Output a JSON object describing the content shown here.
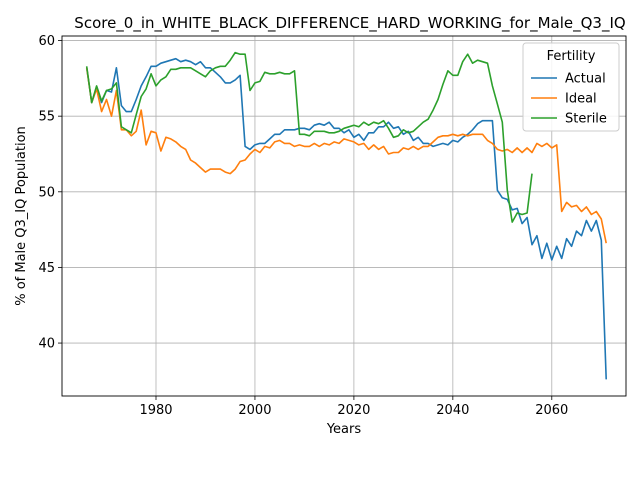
{
  "chart_data": {
    "type": "line",
    "title": "Score_0_in_WHITE_BLACK_DIFFERENCE_HARD_WORKING_for_Male_Q3_IQ",
    "xlabel": "Years",
    "ylabel": "% of Male Q3_IQ Population",
    "xlim": [
      1961,
      2075
    ],
    "ylim": [
      36.5,
      60.3
    ],
    "xticks": [
      1980,
      2000,
      2020,
      2040,
      2060
    ],
    "yticks": [
      40,
      45,
      50,
      55,
      60
    ],
    "grid": true,
    "legend": {
      "title": "Fertility",
      "position": "top-right"
    },
    "series": [
      {
        "name": "Actual",
        "color": "#1f77b4",
        "points": [
          [
            1966,
            58.2
          ],
          [
            1967,
            55.9
          ],
          [
            1968,
            56.9
          ],
          [
            1969,
            55.9
          ],
          [
            1970,
            56.7
          ],
          [
            1971,
            56.6
          ],
          [
            1972,
            58.2
          ],
          [
            1973,
            55.7
          ],
          [
            1974,
            55.3
          ],
          [
            1975,
            55.3
          ],
          [
            1976,
            56.1
          ],
          [
            1977,
            57.0
          ],
          [
            1978,
            57.6
          ],
          [
            1979,
            58.3
          ],
          [
            1980,
            58.3
          ],
          [
            1981,
            58.5
          ],
          [
            1982,
            58.6
          ],
          [
            1983,
            58.7
          ],
          [
            1984,
            58.8
          ],
          [
            1985,
            58.6
          ],
          [
            1986,
            58.7
          ],
          [
            1987,
            58.6
          ],
          [
            1988,
            58.4
          ],
          [
            1989,
            58.6
          ],
          [
            1990,
            58.2
          ],
          [
            1991,
            58.2
          ],
          [
            1992,
            57.9
          ],
          [
            1993,
            57.6
          ],
          [
            1994,
            57.2
          ],
          [
            1995,
            57.2
          ],
          [
            1996,
            57.4
          ],
          [
            1997,
            57.7
          ],
          [
            1998,
            53.0
          ],
          [
            1999,
            52.8
          ],
          [
            2000,
            53.1
          ],
          [
            2001,
            53.2
          ],
          [
            2002,
            53.2
          ],
          [
            2003,
            53.5
          ],
          [
            2004,
            53.8
          ],
          [
            2005,
            53.8
          ],
          [
            2006,
            54.1
          ],
          [
            2007,
            54.1
          ],
          [
            2008,
            54.1
          ],
          [
            2009,
            54.2
          ],
          [
            2010,
            54.2
          ],
          [
            2011,
            54.1
          ],
          [
            2012,
            54.4
          ],
          [
            2013,
            54.5
          ],
          [
            2014,
            54.4
          ],
          [
            2015,
            54.6
          ],
          [
            2016,
            54.2
          ],
          [
            2017,
            54.2
          ],
          [
            2018,
            53.9
          ],
          [
            2019,
            54.1
          ],
          [
            2020,
            53.6
          ],
          [
            2021,
            53.8
          ],
          [
            2022,
            53.4
          ],
          [
            2023,
            53.9
          ],
          [
            2024,
            53.9
          ],
          [
            2025,
            54.3
          ],
          [
            2026,
            54.3
          ],
          [
            2027,
            54.6
          ],
          [
            2028,
            54.2
          ],
          [
            2029,
            54.3
          ],
          [
            2030,
            53.8
          ],
          [
            2031,
            54.0
          ],
          [
            2032,
            53.4
          ],
          [
            2033,
            53.6
          ],
          [
            2034,
            53.2
          ],
          [
            2035,
            53.2
          ],
          [
            2036,
            53.0
          ],
          [
            2037,
            53.1
          ],
          [
            2038,
            53.2
          ],
          [
            2039,
            53.1
          ],
          [
            2040,
            53.4
          ],
          [
            2041,
            53.3
          ],
          [
            2042,
            53.6
          ],
          [
            2043,
            53.8
          ],
          [
            2044,
            54.1
          ],
          [
            2045,
            54.5
          ],
          [
            2046,
            54.7
          ],
          [
            2047,
            54.7
          ],
          [
            2048,
            54.7
          ],
          [
            2049,
            50.1
          ],
          [
            2050,
            49.6
          ],
          [
            2051,
            49.5
          ],
          [
            2052,
            48.8
          ],
          [
            2053,
            48.9
          ],
          [
            2054,
            47.9
          ],
          [
            2055,
            48.3
          ],
          [
            2056,
            46.5
          ],
          [
            2057,
            47.1
          ],
          [
            2058,
            45.6
          ],
          [
            2059,
            46.6
          ],
          [
            2060,
            45.5
          ],
          [
            2061,
            46.4
          ],
          [
            2062,
            45.6
          ],
          [
            2063,
            46.9
          ],
          [
            2064,
            46.4
          ],
          [
            2065,
            47.4
          ],
          [
            2066,
            47.1
          ],
          [
            2067,
            48.1
          ],
          [
            2068,
            47.4
          ],
          [
            2069,
            48.1
          ],
          [
            2070,
            46.8
          ],
          [
            2071,
            37.6
          ]
        ]
      },
      {
        "name": "Ideal",
        "color": "#ff7f0e",
        "points": [
          [
            1966,
            58.2
          ],
          [
            1967,
            55.9
          ],
          [
            1968,
            56.8
          ],
          [
            1969,
            55.3
          ],
          [
            1970,
            56.1
          ],
          [
            1971,
            55.0
          ],
          [
            1972,
            56.7
          ],
          [
            1973,
            54.1
          ],
          [
            1974,
            54.1
          ],
          [
            1975,
            53.7
          ],
          [
            1976,
            54.0
          ],
          [
            1977,
            55.4
          ],
          [
            1978,
            53.1
          ],
          [
            1979,
            54.0
          ],
          [
            1980,
            53.9
          ],
          [
            1981,
            52.7
          ],
          [
            1982,
            53.6
          ],
          [
            1983,
            53.5
          ],
          [
            1984,
            53.3
          ],
          [
            1985,
            53.0
          ],
          [
            1986,
            52.8
          ],
          [
            1987,
            52.1
          ],
          [
            1988,
            51.9
          ],
          [
            1989,
            51.6
          ],
          [
            1990,
            51.3
          ],
          [
            1991,
            51.5
          ],
          [
            1992,
            51.5
          ],
          [
            1993,
            51.5
          ],
          [
            1994,
            51.3
          ],
          [
            1995,
            51.2
          ],
          [
            1996,
            51.5
          ],
          [
            1997,
            52.0
          ],
          [
            1998,
            52.1
          ],
          [
            1999,
            52.5
          ],
          [
            2000,
            52.8
          ],
          [
            2001,
            52.6
          ],
          [
            2002,
            53.0
          ],
          [
            2003,
            52.9
          ],
          [
            2004,
            53.3
          ],
          [
            2005,
            53.4
          ],
          [
            2006,
            53.2
          ],
          [
            2007,
            53.2
          ],
          [
            2008,
            53.0
          ],
          [
            2009,
            53.1
          ],
          [
            2010,
            53.0
          ],
          [
            2011,
            53.0
          ],
          [
            2012,
            53.2
          ],
          [
            2013,
            53.0
          ],
          [
            2014,
            53.2
          ],
          [
            2015,
            53.1
          ],
          [
            2016,
            53.3
          ],
          [
            2017,
            53.2
          ],
          [
            2018,
            53.5
          ],
          [
            2019,
            53.4
          ],
          [
            2020,
            53.3
          ],
          [
            2021,
            53.1
          ],
          [
            2022,
            53.2
          ],
          [
            2023,
            52.8
          ],
          [
            2024,
            53.1
          ],
          [
            2025,
            52.8
          ],
          [
            2026,
            53.0
          ],
          [
            2027,
            52.5
          ],
          [
            2028,
            52.6
          ],
          [
            2029,
            52.6
          ],
          [
            2030,
            52.9
          ],
          [
            2031,
            52.8
          ],
          [
            2032,
            53.0
          ],
          [
            2033,
            52.8
          ],
          [
            2034,
            53.0
          ],
          [
            2035,
            53.0
          ],
          [
            2036,
            53.3
          ],
          [
            2037,
            53.6
          ],
          [
            2038,
            53.7
          ],
          [
            2039,
            53.7
          ],
          [
            2040,
            53.8
          ],
          [
            2041,
            53.7
          ],
          [
            2042,
            53.8
          ],
          [
            2043,
            53.7
          ],
          [
            2044,
            53.8
          ],
          [
            2045,
            53.8
          ],
          [
            2046,
            53.8
          ],
          [
            2047,
            53.4
          ],
          [
            2048,
            53.2
          ],
          [
            2049,
            52.8
          ],
          [
            2050,
            52.7
          ],
          [
            2051,
            52.8
          ],
          [
            2052,
            52.6
          ],
          [
            2053,
            52.9
          ],
          [
            2054,
            52.6
          ],
          [
            2055,
            52.9
          ],
          [
            2056,
            52.6
          ],
          [
            2057,
            53.2
          ],
          [
            2058,
            53.0
          ],
          [
            2059,
            53.2
          ],
          [
            2060,
            52.9
          ],
          [
            2061,
            53.1
          ],
          [
            2062,
            48.7
          ],
          [
            2063,
            49.3
          ],
          [
            2064,
            49.0
          ],
          [
            2065,
            49.1
          ],
          [
            2066,
            48.7
          ],
          [
            2067,
            49.0
          ],
          [
            2068,
            48.5
          ],
          [
            2069,
            48.7
          ],
          [
            2070,
            48.2
          ],
          [
            2071,
            46.6
          ]
        ]
      },
      {
        "name": "Sterile",
        "color": "#2ca02c",
        "points": [
          [
            1966,
            58.3
          ],
          [
            1967,
            55.9
          ],
          [
            1968,
            57.0
          ],
          [
            1969,
            56.0
          ],
          [
            1970,
            56.7
          ],
          [
            1971,
            56.8
          ],
          [
            1972,
            57.2
          ],
          [
            1973,
            54.3
          ],
          [
            1974,
            54.1
          ],
          [
            1975,
            53.9
          ],
          [
            1976,
            55.1
          ],
          [
            1977,
            56.3
          ],
          [
            1978,
            56.8
          ],
          [
            1979,
            57.8
          ],
          [
            1980,
            57.0
          ],
          [
            1981,
            57.4
          ],
          [
            1982,
            57.6
          ],
          [
            1983,
            58.1
          ],
          [
            1984,
            58.1
          ],
          [
            1985,
            58.2
          ],
          [
            1986,
            58.2
          ],
          [
            1987,
            58.2
          ],
          [
            1988,
            58.0
          ],
          [
            1989,
            57.8
          ],
          [
            1990,
            57.6
          ],
          [
            1991,
            58.0
          ],
          [
            1992,
            58.2
          ],
          [
            1993,
            58.3
          ],
          [
            1994,
            58.3
          ],
          [
            1995,
            58.7
          ],
          [
            1996,
            59.2
          ],
          [
            1997,
            59.1
          ],
          [
            1998,
            59.1
          ],
          [
            1999,
            56.7
          ],
          [
            2000,
            57.2
          ],
          [
            2001,
            57.3
          ],
          [
            2002,
            57.9
          ],
          [
            2003,
            57.8
          ],
          [
            2004,
            57.8
          ],
          [
            2005,
            57.9
          ],
          [
            2006,
            57.8
          ],
          [
            2007,
            57.8
          ],
          [
            2008,
            58.0
          ],
          [
            2009,
            53.8
          ],
          [
            2010,
            53.8
          ],
          [
            2011,
            53.7
          ],
          [
            2012,
            54.0
          ],
          [
            2013,
            54.0
          ],
          [
            2014,
            54.0
          ],
          [
            2015,
            53.9
          ],
          [
            2016,
            53.9
          ],
          [
            2017,
            54.0
          ],
          [
            2018,
            54.2
          ],
          [
            2019,
            54.3
          ],
          [
            2020,
            54.4
          ],
          [
            2021,
            54.3
          ],
          [
            2022,
            54.6
          ],
          [
            2023,
            54.4
          ],
          [
            2024,
            54.6
          ],
          [
            2025,
            54.5
          ],
          [
            2026,
            54.7
          ],
          [
            2027,
            54.2
          ],
          [
            2028,
            53.6
          ],
          [
            2029,
            53.7
          ],
          [
            2030,
            54.1
          ],
          [
            2031,
            53.9
          ],
          [
            2032,
            54.0
          ],
          [
            2033,
            54.3
          ],
          [
            2034,
            54.6
          ],
          [
            2035,
            54.8
          ],
          [
            2036,
            55.4
          ],
          [
            2037,
            56.1
          ],
          [
            2038,
            57.1
          ],
          [
            2039,
            58.0
          ],
          [
            2040,
            57.7
          ],
          [
            2041,
            57.7
          ],
          [
            2042,
            58.6
          ],
          [
            2043,
            59.1
          ],
          [
            2044,
            58.5
          ],
          [
            2045,
            58.7
          ],
          [
            2046,
            58.6
          ],
          [
            2047,
            58.5
          ],
          [
            2048,
            57.0
          ],
          [
            2049,
            55.8
          ],
          [
            2050,
            54.6
          ],
          [
            2051,
            50.1
          ],
          [
            2052,
            48.0
          ],
          [
            2053,
            48.6
          ],
          [
            2054,
            48.5
          ],
          [
            2055,
            48.6
          ],
          [
            2056,
            51.2
          ]
        ]
      }
    ]
  }
}
